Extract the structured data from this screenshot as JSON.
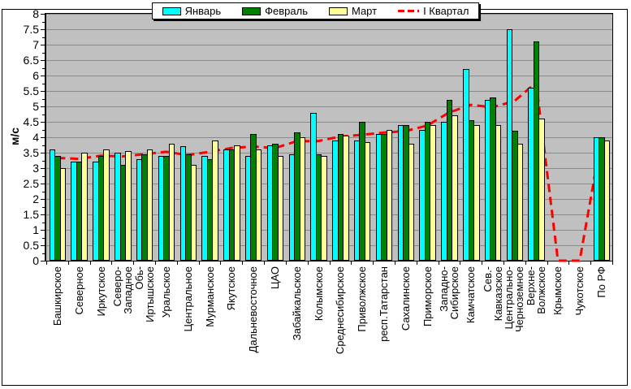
{
  "chart": {
    "y_axis_title": "м/с",
    "legend_labels": [
      "Январь",
      "Февраль",
      "Март",
      "I Квартал"
    ]
  },
  "chart_data": {
    "type": "bar",
    "title": "",
    "xlabel": "",
    "ylabel": "м/с",
    "ylim": [
      0,
      8
    ],
    "y_tick_step": 0.5,
    "grid": true,
    "legend_position": "top-center",
    "plot_background": "#C0C0C0",
    "gridline_color": "#8a8a8a",
    "categories": [
      "Башкирское",
      "Северное",
      "Иркутское",
      "Северо-\nЗападное",
      "Обь-\nИртышское",
      "Уральское",
      "Центральное",
      "Мурманское",
      "Якутское",
      "Дальневосточное",
      "ЦАО",
      "Забайкальское",
      "Колымское",
      "Среднесибирское",
      "Приволжское",
      "респ.Татарстан",
      "Сахалинское",
      "Приморское",
      "Западно-\nСибирское",
      "Камчатское",
      "Сев.-\nКавказское",
      "Центрально-\nЧерноземное",
      "Верхне-\nВолжское",
      "Крымское",
      "Чукотское",
      "По РФ"
    ],
    "series": [
      {
        "name": "Январь",
        "type": "bar",
        "color": "#00FFFF",
        "values": [
          3.6,
          3.2,
          3.2,
          3.5,
          3.3,
          3.4,
          3.7,
          3.4,
          3.6,
          3.4,
          3.75,
          3.45,
          4.8,
          3.9,
          3.9,
          4.1,
          4.4,
          4.25,
          4.5,
          6.2,
          5.2,
          7.5,
          5.6,
          0,
          0,
          4.0
        ]
      },
      {
        "name": "Февраль",
        "type": "bar",
        "color": "#008000",
        "values": [
          3.4,
          3.2,
          3.4,
          3.1,
          3.45,
          3.4,
          3.45,
          3.3,
          3.6,
          4.1,
          3.8,
          4.15,
          3.45,
          4.1,
          4.5,
          4.1,
          4.4,
          4.5,
          5.2,
          4.55,
          5.3,
          4.2,
          7.1,
          0,
          0,
          4.0
        ]
      },
      {
        "name": "Март",
        "type": "bar",
        "color": "#FFFF99",
        "values": [
          3.0,
          3.5,
          3.6,
          3.55,
          3.6,
          3.8,
          3.1,
          3.9,
          3.75,
          3.6,
          3.4,
          4.0,
          3.4,
          4.05,
          3.85,
          4.25,
          3.8,
          4.4,
          4.7,
          4.4,
          4.4,
          3.8,
          4.6,
          0,
          0,
          3.9
        ]
      },
      {
        "name": "I Квартал",
        "type": "line",
        "style": "dashed",
        "color": "#FF0000",
        "line_width": 3,
        "values": [
          3.33,
          3.3,
          3.4,
          3.38,
          3.45,
          3.53,
          3.42,
          3.53,
          3.65,
          3.7,
          3.65,
          3.87,
          3.88,
          4.02,
          4.08,
          4.15,
          4.2,
          4.38,
          4.8,
          5.05,
          4.97,
          5.17,
          5.77,
          0,
          0,
          3.97
        ]
      }
    ]
  }
}
